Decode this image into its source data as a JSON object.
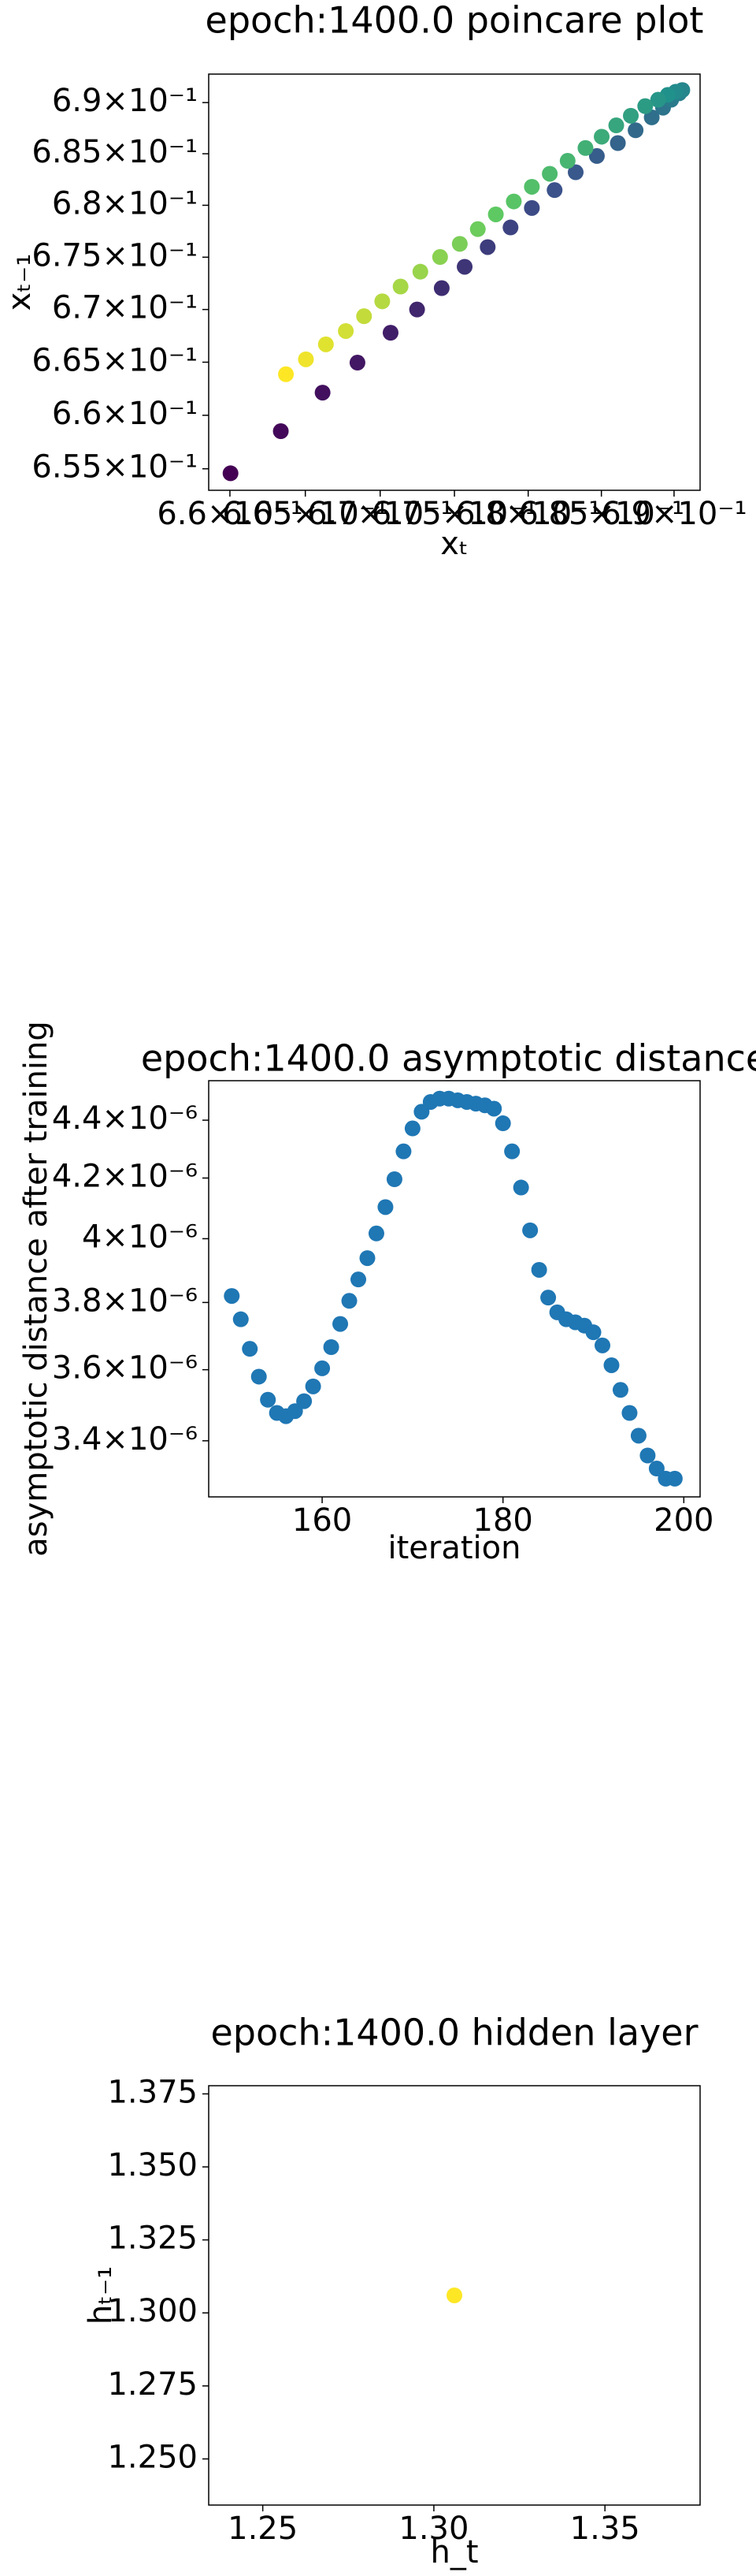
{
  "chart_data": [
    {
      "type": "scatter",
      "title": "epoch:1400.0 poincare plot",
      "xlabel": "xₜ",
      "ylabel": "xₜ₋₁",
      "xscale": "log",
      "yscale": "log",
      "colormap": [
        "#440154",
        "#3b528b",
        "#21918c",
        "#5ec962",
        "#fde725"
      ],
      "x": [
        0.66004,
        0.66337,
        0.66615,
        0.66848,
        0.6707,
        0.67248,
        0.67414,
        0.67569,
        0.67725,
        0.6788,
        0.68025,
        0.6818,
        0.68324,
        0.68469,
        0.68613,
        0.68735,
        0.68846,
        0.68924,
        0.6898,
        0.69035,
        0.69057,
        0.69012,
        0.68957,
        0.6889,
        0.68801,
        0.68702,
        0.68602,
        0.68502,
        0.68391,
        0.68269,
        0.68147,
        0.68025,
        0.67902,
        0.6778,
        0.67658,
        0.67536,
        0.67403,
        0.6727,
        0.67137,
        0.67014,
        0.66892,
        0.6677,
        0.66637,
        0.66504,
        0.66371
      ],
      "values": [
        0.65458,
        0.65851,
        0.66213,
        0.66496,
        0.66779,
        0.67,
        0.67204,
        0.67408,
        0.67597,
        0.67786,
        0.67974,
        0.68147,
        0.6832,
        0.68478,
        0.68604,
        0.68729,
        0.68855,
        0.6895,
        0.69028,
        0.69091,
        0.69123,
        0.69107,
        0.69076,
        0.69028,
        0.68965,
        0.68871,
        0.68777,
        0.68666,
        0.68556,
        0.68431,
        0.68305,
        0.68179,
        0.68037,
        0.67912,
        0.6777,
        0.67628,
        0.67502,
        0.67361,
        0.67219,
        0.67078,
        0.66936,
        0.66795,
        0.66669,
        0.66527,
        0.66386
      ],
      "xlim": [
        0.6586,
        0.6918
      ],
      "ylim": [
        0.653,
        0.6928
      ],
      "xticks": [
        {
          "value": 0.66,
          "label": "6.6×10⁻¹"
        },
        {
          "value": 0.665,
          "label": "6.65×10⁻¹"
        },
        {
          "value": 0.67,
          "label": "6.7×10⁻¹"
        },
        {
          "value": 0.675,
          "label": "6.75×10⁻¹"
        },
        {
          "value": 0.68,
          "label": "6.8×10⁻¹"
        },
        {
          "value": 0.685,
          "label": "6.85×10⁻¹"
        },
        {
          "value": 0.69,
          "label": "6.9×10⁻¹"
        }
      ],
      "yticks": [
        {
          "value": 0.655,
          "label": "6.55×10⁻¹"
        },
        {
          "value": 0.66,
          "label": "6.6×10⁻¹"
        },
        {
          "value": 0.665,
          "label": "6.65×10⁻¹"
        },
        {
          "value": 0.67,
          "label": "6.7×10⁻¹"
        },
        {
          "value": 0.675,
          "label": "6.75×10⁻¹"
        },
        {
          "value": 0.68,
          "label": "6.8×10⁻¹"
        },
        {
          "value": 0.685,
          "label": "6.85×10⁻¹"
        },
        {
          "value": 0.69,
          "label": "6.9×10⁻¹"
        }
      ]
    },
    {
      "type": "scatter",
      "title": "epoch:1400.0 asymptotic distance",
      "xlabel": "iteration",
      "ylabel": "asymptotic distance after training",
      "xscale": "linear",
      "yscale": "log",
      "color": "#1f77b4",
      "x": [
        150,
        151,
        152,
        153,
        154,
        155,
        156,
        157,
        158,
        159,
        160,
        161,
        162,
        163,
        164,
        165,
        166,
        167,
        168,
        169,
        170,
        171,
        172,
        173,
        174,
        175,
        176,
        177,
        178,
        179,
        180,
        181,
        182,
        183,
        184,
        185,
        186,
        187,
        188,
        189,
        190,
        191,
        192,
        193,
        194,
        195,
        196,
        197,
        198,
        199
      ],
      "values": [
        3.82e-06,
        3.749e-06,
        3.661e-06,
        3.58e-06,
        3.514e-06,
        3.477e-06,
        3.468e-06,
        3.482e-06,
        3.51e-06,
        3.552e-06,
        3.604e-06,
        3.666e-06,
        3.735e-06,
        3.805e-06,
        3.871e-06,
        3.938e-06,
        4.017e-06,
        4.103e-06,
        4.196e-06,
        4.291e-06,
        4.371e-06,
        4.43e-06,
        4.465e-06,
        4.477e-06,
        4.477e-06,
        4.471e-06,
        4.465e-06,
        4.459e-06,
        4.453e-06,
        4.441e-06,
        4.389e-06,
        4.291e-06,
        4.168e-06,
        4.027e-06,
        3.901e-06,
        3.815e-06,
        3.77e-06,
        3.749e-06,
        3.74e-06,
        3.73e-06,
        3.71e-06,
        3.671e-06,
        3.613e-06,
        3.542e-06,
        3.477e-06,
        3.414e-06,
        3.36e-06,
        3.325e-06,
        3.298e-06,
        3.298e-06
      ],
      "xlim": [
        147.45,
        201.8
      ],
      "ylim": [
        3.25e-06,
        4.542e-06
      ],
      "xticks": [
        160,
        180,
        200
      ],
      "yticks": [
        {
          "value": 3.4e-06,
          "label": "3.4×10⁻⁶"
        },
        {
          "value": 3.6e-06,
          "label": "3.6×10⁻⁶"
        },
        {
          "value": 3.8e-06,
          "label": "3.8×10⁻⁶"
        },
        {
          "value": 4e-06,
          "label": "4×10⁻⁶"
        },
        {
          "value": 4.2e-06,
          "label": "4.2×10⁻⁶"
        },
        {
          "value": 4.4e-06,
          "label": "4.4×10⁻⁶"
        }
      ]
    },
    {
      "type": "scatter",
      "title": "epoch:1400.0 hidden layer",
      "xlabel": "h_t",
      "ylabel": "hₜ₋₁",
      "xscale": "linear",
      "yscale": "linear",
      "color": "#fde725",
      "x": [
        1.306
      ],
      "values": [
        1.306
      ],
      "xlim": [
        1.2342,
        1.3778
      ],
      "ylim": [
        1.2342,
        1.3778
      ],
      "xticks": [
        1.25,
        {
          "value": 1.3,
          "label": "1.30"
        },
        1.35
      ],
      "yticks": [
        {
          "value": 1.25,
          "label": "1.250"
        },
        1.275,
        {
          "value": 1.3,
          "label": "1.300"
        },
        1.325,
        {
          "value": 1.35,
          "label": "1.350"
        },
        1.375
      ]
    }
  ]
}
